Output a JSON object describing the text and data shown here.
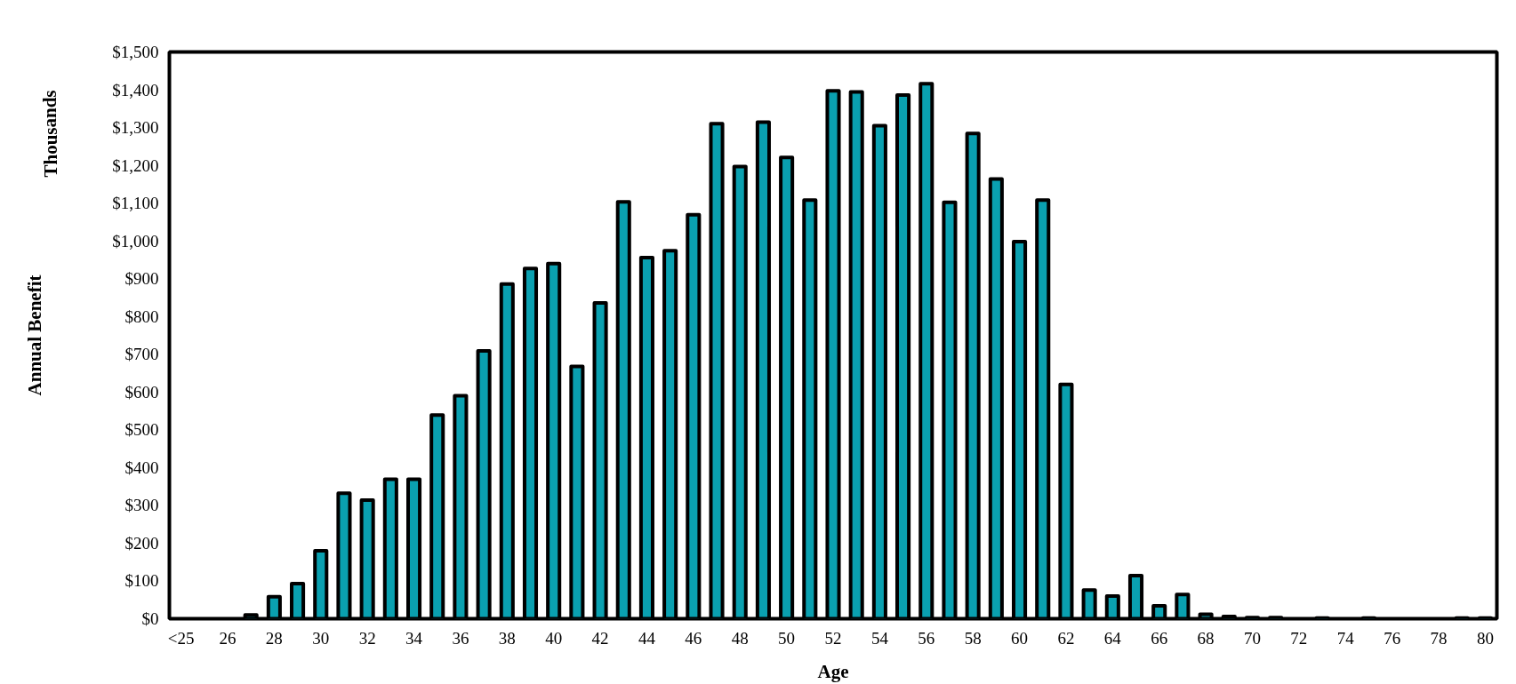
{
  "chart_data": {
    "type": "bar",
    "xlabel": "Age",
    "ylabel": "Annual Benefit",
    "annotations": [
      "Thousands"
    ],
    "categories": [
      "<25",
      null,
      "26",
      null,
      "28",
      null,
      "30",
      null,
      "32",
      null,
      "34",
      null,
      "36",
      null,
      "38",
      null,
      "40",
      null,
      "42",
      null,
      "44",
      null,
      "46",
      null,
      "48",
      null,
      "50",
      null,
      "52",
      null,
      "54",
      null,
      "56",
      null,
      "58",
      null,
      "60",
      null,
      "62",
      null,
      "64",
      null,
      "66",
      null,
      "68",
      null,
      "70",
      null,
      "72",
      null,
      "74",
      null,
      "76",
      null,
      "78",
      null,
      "80"
    ],
    "values": [
      0,
      0,
      0,
      10,
      58,
      93,
      180,
      332,
      314,
      369,
      369,
      539,
      590,
      709,
      886,
      927,
      940,
      668,
      836,
      1103,
      956,
      974,
      1069,
      1310,
      1197,
      1314,
      1221,
      1108,
      1397,
      1394,
      1305,
      1386,
      1416,
      1102,
      1284,
      1164,
      998,
      1108,
      620,
      76,
      60,
      114,
      34,
      64,
      12,
      6,
      3,
      3,
      0,
      2,
      0,
      2,
      0,
      0,
      0,
      2,
      2
    ],
    "color": "#0aa0b0",
    "ylim": [
      0,
      1500
    ],
    "yticks": [
      {
        "value": 0,
        "label": "$0"
      },
      {
        "value": 100,
        "label": "$100"
      },
      {
        "value": 200,
        "label": "$200"
      },
      {
        "value": 300,
        "label": "$300"
      },
      {
        "value": 400,
        "label": "$400"
      },
      {
        "value": 500,
        "label": "$500"
      },
      {
        "value": 600,
        "label": "$600"
      },
      {
        "value": 700,
        "label": "$700"
      },
      {
        "value": 800,
        "label": "$800"
      },
      {
        "value": 900,
        "label": "$900"
      },
      {
        "value": 1000,
        "label": "$1,000"
      },
      {
        "value": 1100,
        "label": "$1,100"
      },
      {
        "value": 1200,
        "label": "$1,200"
      },
      {
        "value": 1300,
        "label": "$1,300"
      },
      {
        "value": 1400,
        "label": "$1,400"
      },
      {
        "value": 1500,
        "label": "$1,500"
      }
    ],
    "grid": false
  }
}
